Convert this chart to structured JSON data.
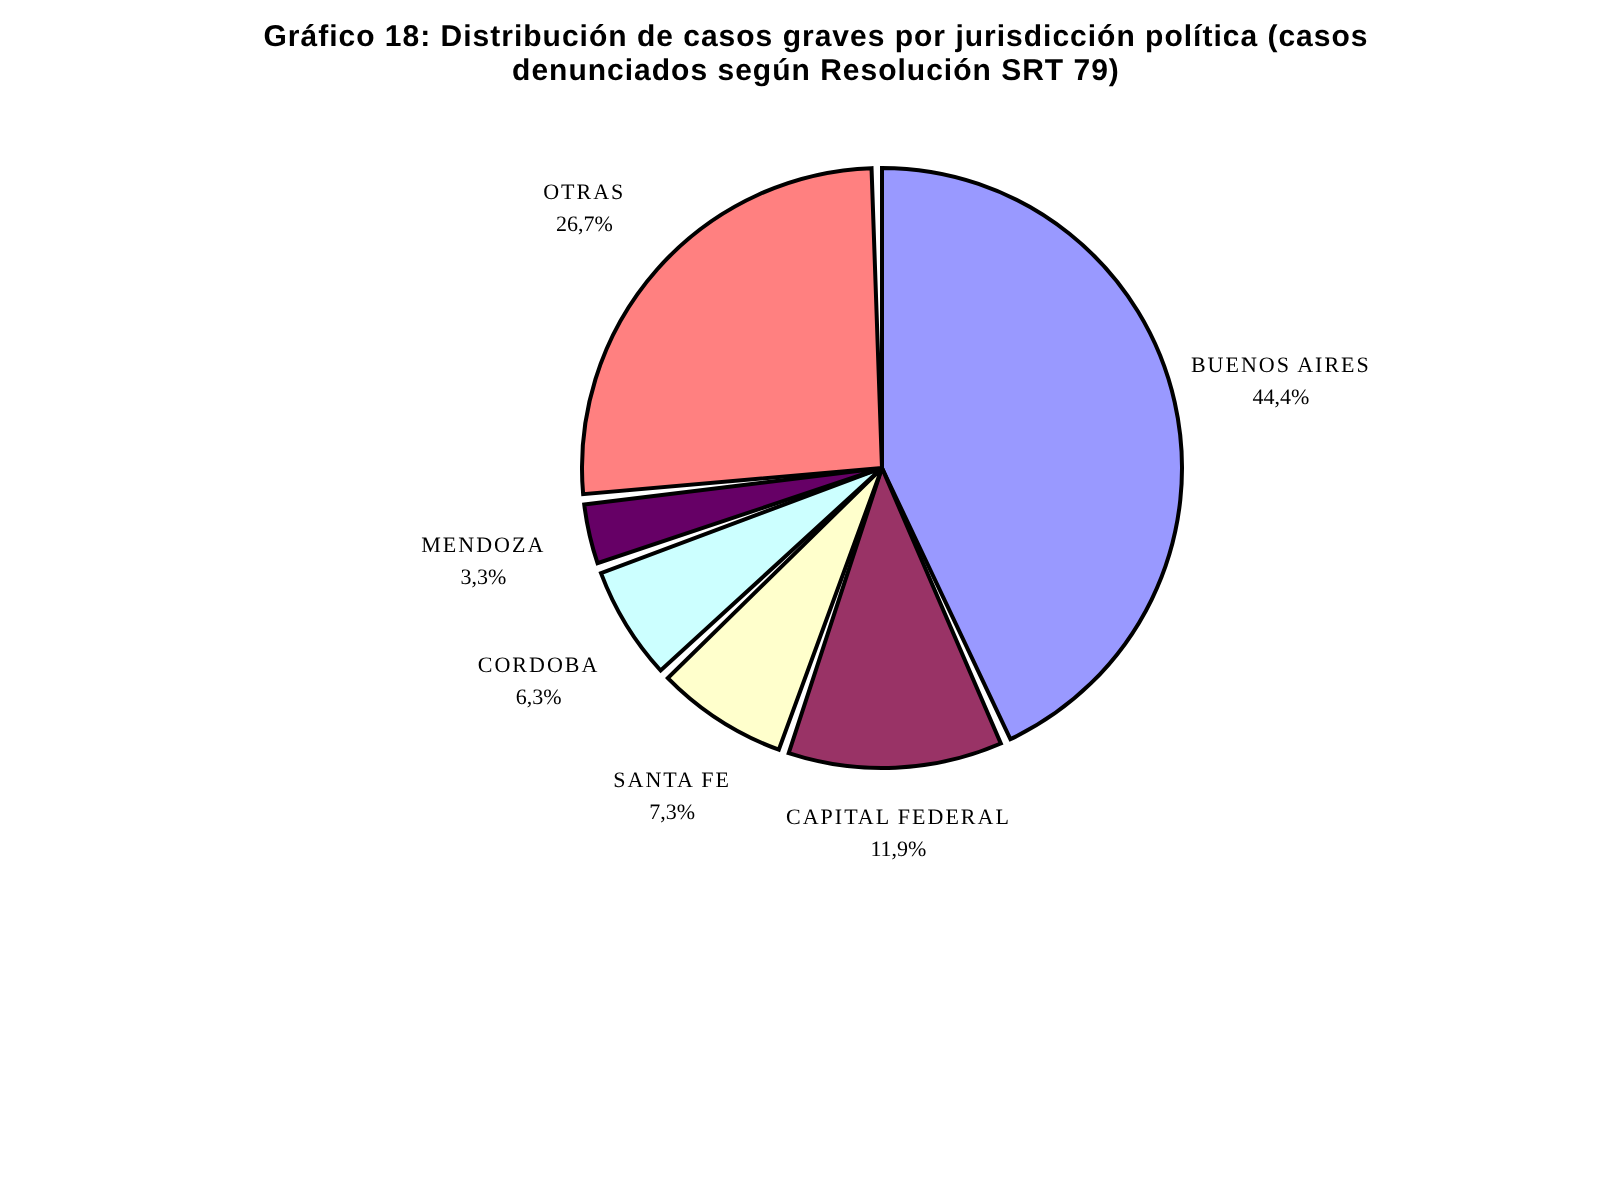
{
  "chart_data": {
    "type": "pie",
    "title": "Gráfico 18: Distribución de casos graves por jurisdicción política (casos denunciados según Resolución SRT 79)",
    "categories": [
      "BUENOS AIRES",
      "CAPITAL FEDERAL",
      "SANTA FE",
      "CORDOBA",
      "MENDOZA",
      "OTRAS"
    ],
    "values": [
      44.4,
      11.9,
      7.3,
      6.3,
      3.3,
      26.7
    ],
    "value_labels": [
      "44,4%",
      "11,9%",
      "7,3%",
      "6,3%",
      "3,3%",
      "26,7%"
    ],
    "colors": [
      "#9999ff",
      "#993366",
      "#ffffcc",
      "#ccffff",
      "#660066",
      "#ff8080"
    ],
    "legend": false
  }
}
